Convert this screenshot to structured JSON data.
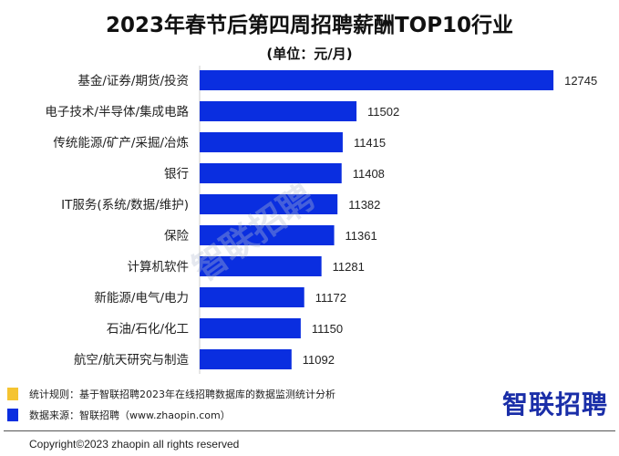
{
  "chart_data": {
    "type": "bar",
    "orientation": "horizontal",
    "title": "2023年春节后第四周招聘薪酬TOP10行业",
    "subtitle": "(单位：元/月)",
    "categories": [
      "基金/证券/期货/投资",
      "电子技术/半导体/集成电路",
      "传统能源/矿产/采掘/冶炼",
      "银行",
      "IT服务(系统/数据/维护)",
      "保险",
      "计算机软件",
      "新能源/电气/电力",
      "石油/石化/化工",
      "航空/航天研究与制造"
    ],
    "values": [
      12745,
      11502,
      11415,
      11408,
      11382,
      11361,
      11281,
      11172,
      11150,
      11092
    ],
    "bar_color": "#0a2ee0",
    "grid": false
  },
  "watermark": "智联招聘",
  "notes": [
    {
      "text": "统计规则：基于智联招聘2023年在线招聘数据库的数据监测统计分析",
      "color": "#f5c431"
    },
    {
      "text": "数据来源：智联招聘（www.zhaopin.com）",
      "color": "#0a2ee0"
    }
  ],
  "logo": "智联招聘",
  "copyright": "Copyright©2023 zhaopin all rights reserved"
}
